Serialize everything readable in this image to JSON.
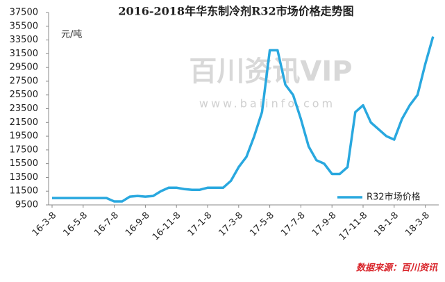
{
  "chart_data": {
    "type": "line",
    "title": "2016-2018年华东制冷剂R32市场价格走势图",
    "y_label": "元/吨",
    "watermark": [
      "百川资讯VIP",
      "www.baiinfo.com"
    ],
    "source": "数据来源：百川资讯",
    "categories": [
      "16-3-8",
      null,
      null,
      null,
      "16-5-8",
      null,
      null,
      null,
      "16-7-8",
      null,
      null,
      null,
      "16-9-8",
      null,
      null,
      null,
      "16-11-8",
      null,
      null,
      null,
      "17-1-8",
      null,
      null,
      null,
      "17-3-8",
      null,
      null,
      null,
      "17-5-8",
      null,
      null,
      null,
      "17-7-8",
      null,
      null,
      null,
      "17-9-8",
      null,
      null,
      null,
      "17-11-8",
      null,
      null,
      null,
      "18-1-8",
      null,
      null,
      null,
      "18-3-8",
      null
    ],
    "series": [
      {
        "name": "R32市场价格",
        "color": "#29a8df",
        "values": [
          10500,
          10500,
          10500,
          10500,
          10500,
          10500,
          10500,
          10500,
          10000,
          10000,
          10700,
          10800,
          10700,
          10800,
          11500,
          12000,
          12000,
          11800,
          11700,
          11700,
          12000,
          12000,
          12000,
          13000,
          15000,
          16500,
          19500,
          23000,
          32000,
          32000,
          27000,
          25500,
          22000,
          18000,
          16000,
          15500,
          14000,
          14000,
          15000,
          23000,
          24000,
          21500,
          20500,
          19500,
          19000,
          22000,
          24000,
          25500,
          30000,
          34000
        ]
      }
    ],
    "ylim": [
      9500,
      37500
    ],
    "yticks": [
      9500,
      11500,
      13500,
      15500,
      17500,
      19500,
      21500,
      23500,
      25500,
      27500,
      29500,
      31500,
      33500,
      35500,
      37500
    ],
    "grid": false,
    "legend": "bottom-right"
  }
}
